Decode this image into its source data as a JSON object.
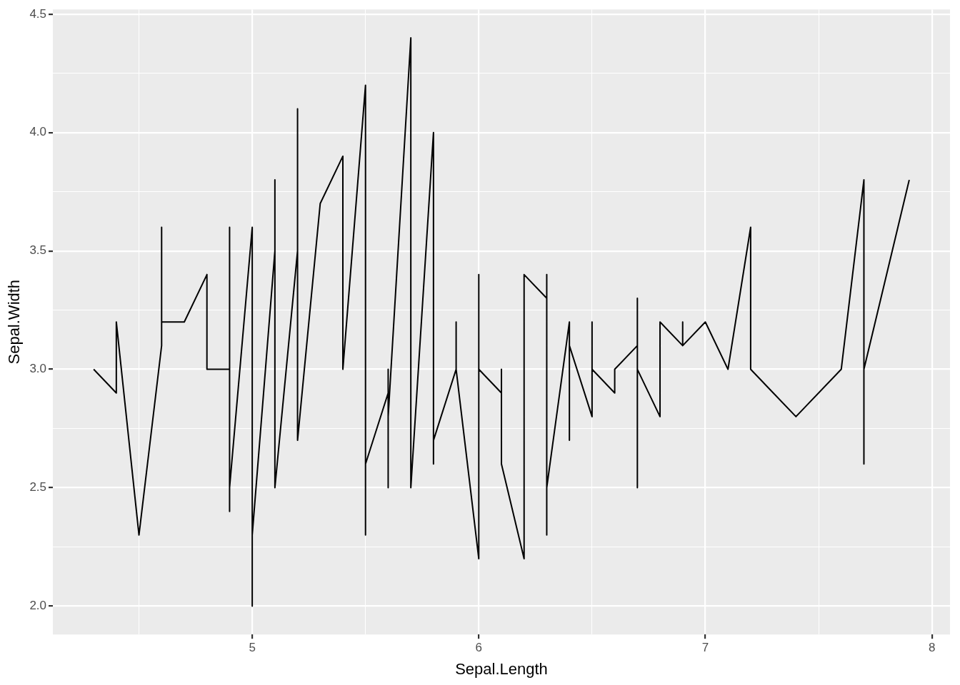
{
  "chart_data": {
    "type": "line",
    "xlabel": "Sepal.Length",
    "ylabel": "Sepal.Width",
    "xlim": [
      4.12,
      8.08
    ],
    "ylim": [
      1.88,
      4.52
    ],
    "xticks": [
      {
        "value": 4.5,
        "label": null
      },
      5,
      {
        "value": 5.5,
        "label": null
      },
      6,
      {
        "value": 6.5,
        "label": null
      },
      7,
      {
        "value": 7.5,
        "label": null
      },
      8
    ],
    "yticks": [
      {
        "value": 2,
        "label": "2.0"
      },
      {
        "value": 2.25,
        "label": null
      },
      2.5,
      {
        "value": 2.75,
        "label": null
      },
      {
        "value": 3,
        "label": "3.0"
      },
      {
        "value": 3.25,
        "label": null
      },
      3.5,
      {
        "value": 3.75,
        "label": null
      },
      {
        "value": 4,
        "label": "4.0"
      },
      {
        "value": 4.25,
        "label": null
      },
      4.5
    ],
    "grid": true,
    "marker": "none",
    "line_style": "solid",
    "series": [
      {
        "color": "#000000",
        "x": [
          4.3,
          4.4,
          4.4,
          4.4,
          4.5,
          4.6,
          4.6,
          4.6,
          4.6,
          4.7,
          4.7,
          4.8,
          4.8,
          4.8,
          4.8,
          4.8,
          4.9,
          4.9,
          4.9,
          4.9,
          4.9,
          4.9,
          5,
          5,
          5,
          5,
          5,
          5,
          5,
          5,
          5,
          5,
          5.1,
          5.1,
          5.1,
          5.1,
          5.1,
          5.1,
          5.1,
          5.1,
          5.1,
          5.2,
          5.2,
          5.2,
          5.2,
          5.3,
          5.4,
          5.4,
          5.4,
          5.4,
          5.4,
          5.4,
          5.5,
          5.5,
          5.5,
          5.5,
          5.5,
          5.5,
          5.6,
          5.6,
          5.6,
          5.6,
          5.6,
          5.6,
          5.7,
          5.7,
          5.7,
          5.7,
          5.7,
          5.7,
          5.7,
          5.7,
          5.8,
          5.8,
          5.8,
          5.8,
          5.8,
          5.8,
          5.8,
          5.9,
          5.9,
          5.9,
          6,
          6,
          6,
          6,
          6,
          6,
          6.1,
          6.1,
          6.1,
          6.1,
          6.1,
          6.1,
          6.2,
          6.2,
          6.2,
          6.2,
          6.3,
          6.3,
          6.3,
          6.3,
          6.3,
          6.3,
          6.3,
          6.3,
          6.3,
          6.4,
          6.4,
          6.4,
          6.4,
          6.4,
          6.4,
          6.4,
          6.5,
          6.5,
          6.5,
          6.5,
          6.5,
          6.6,
          6.6,
          6.7,
          6.7,
          6.7,
          6.7,
          6.7,
          6.7,
          6.7,
          6.7,
          6.8,
          6.8,
          6.8,
          6.9,
          6.9,
          6.9,
          6.9,
          7,
          7.1,
          7.2,
          7.2,
          7.2,
          7.3,
          7.4,
          7.6,
          7.7,
          7.7,
          7.7,
          7.7,
          7.9
        ],
        "values": [
          3,
          2.9,
          3,
          3.2,
          2.3,
          3.1,
          3.4,
          3.6,
          3.2,
          3.2,
          3.2,
          3.4,
          3,
          3.4,
          3.1,
          3,
          3,
          3.1,
          3.1,
          3.6,
          2.4,
          2.5,
          3.6,
          3.4,
          3,
          3.4,
          3.2,
          3.5,
          3.5,
          3.3,
          2,
          2.3,
          3.5,
          3.5,
          3.8,
          3.7,
          3.3,
          3.4,
          3.8,
          3.8,
          2.5,
          3.5,
          3.4,
          4.1,
          2.7,
          3.7,
          3.9,
          3.7,
          3.9,
          3.4,
          3.4,
          3,
          4.2,
          3.5,
          2.3,
          2.4,
          2.4,
          2.6,
          2.9,
          3,
          2.5,
          3,
          2.7,
          2.8,
          4.4,
          3.8,
          2.8,
          2.6,
          3,
          2.9,
          2.8,
          2.5,
          4,
          2.7,
          2.7,
          2.6,
          2.7,
          2.8,
          2.7,
          3,
          3.2,
          3,
          2.2,
          2.9,
          2.7,
          3.4,
          2.2,
          3,
          2.9,
          2.8,
          2.8,
          3,
          3,
          2.6,
          2.2,
          2.9,
          2.8,
          3.4,
          3.3,
          2.5,
          2.3,
          3.3,
          2.9,
          2.7,
          2.8,
          3.4,
          2.5,
          3.2,
          2.9,
          2.7,
          3.2,
          2.8,
          2.8,
          3.1,
          2.8,
          3,
          3.2,
          3,
          3,
          2.9,
          3,
          3.1,
          3,
          3.1,
          2.5,
          3.3,
          3.1,
          3.3,
          3,
          2.8,
          3,
          3.2,
          3.1,
          3.2,
          3.1,
          3.1,
          3.2,
          3,
          3.6,
          3.2,
          3,
          2.9,
          2.8,
          3,
          3.8,
          2.6,
          2.8,
          3,
          3.8
        ]
      }
    ]
  }
}
